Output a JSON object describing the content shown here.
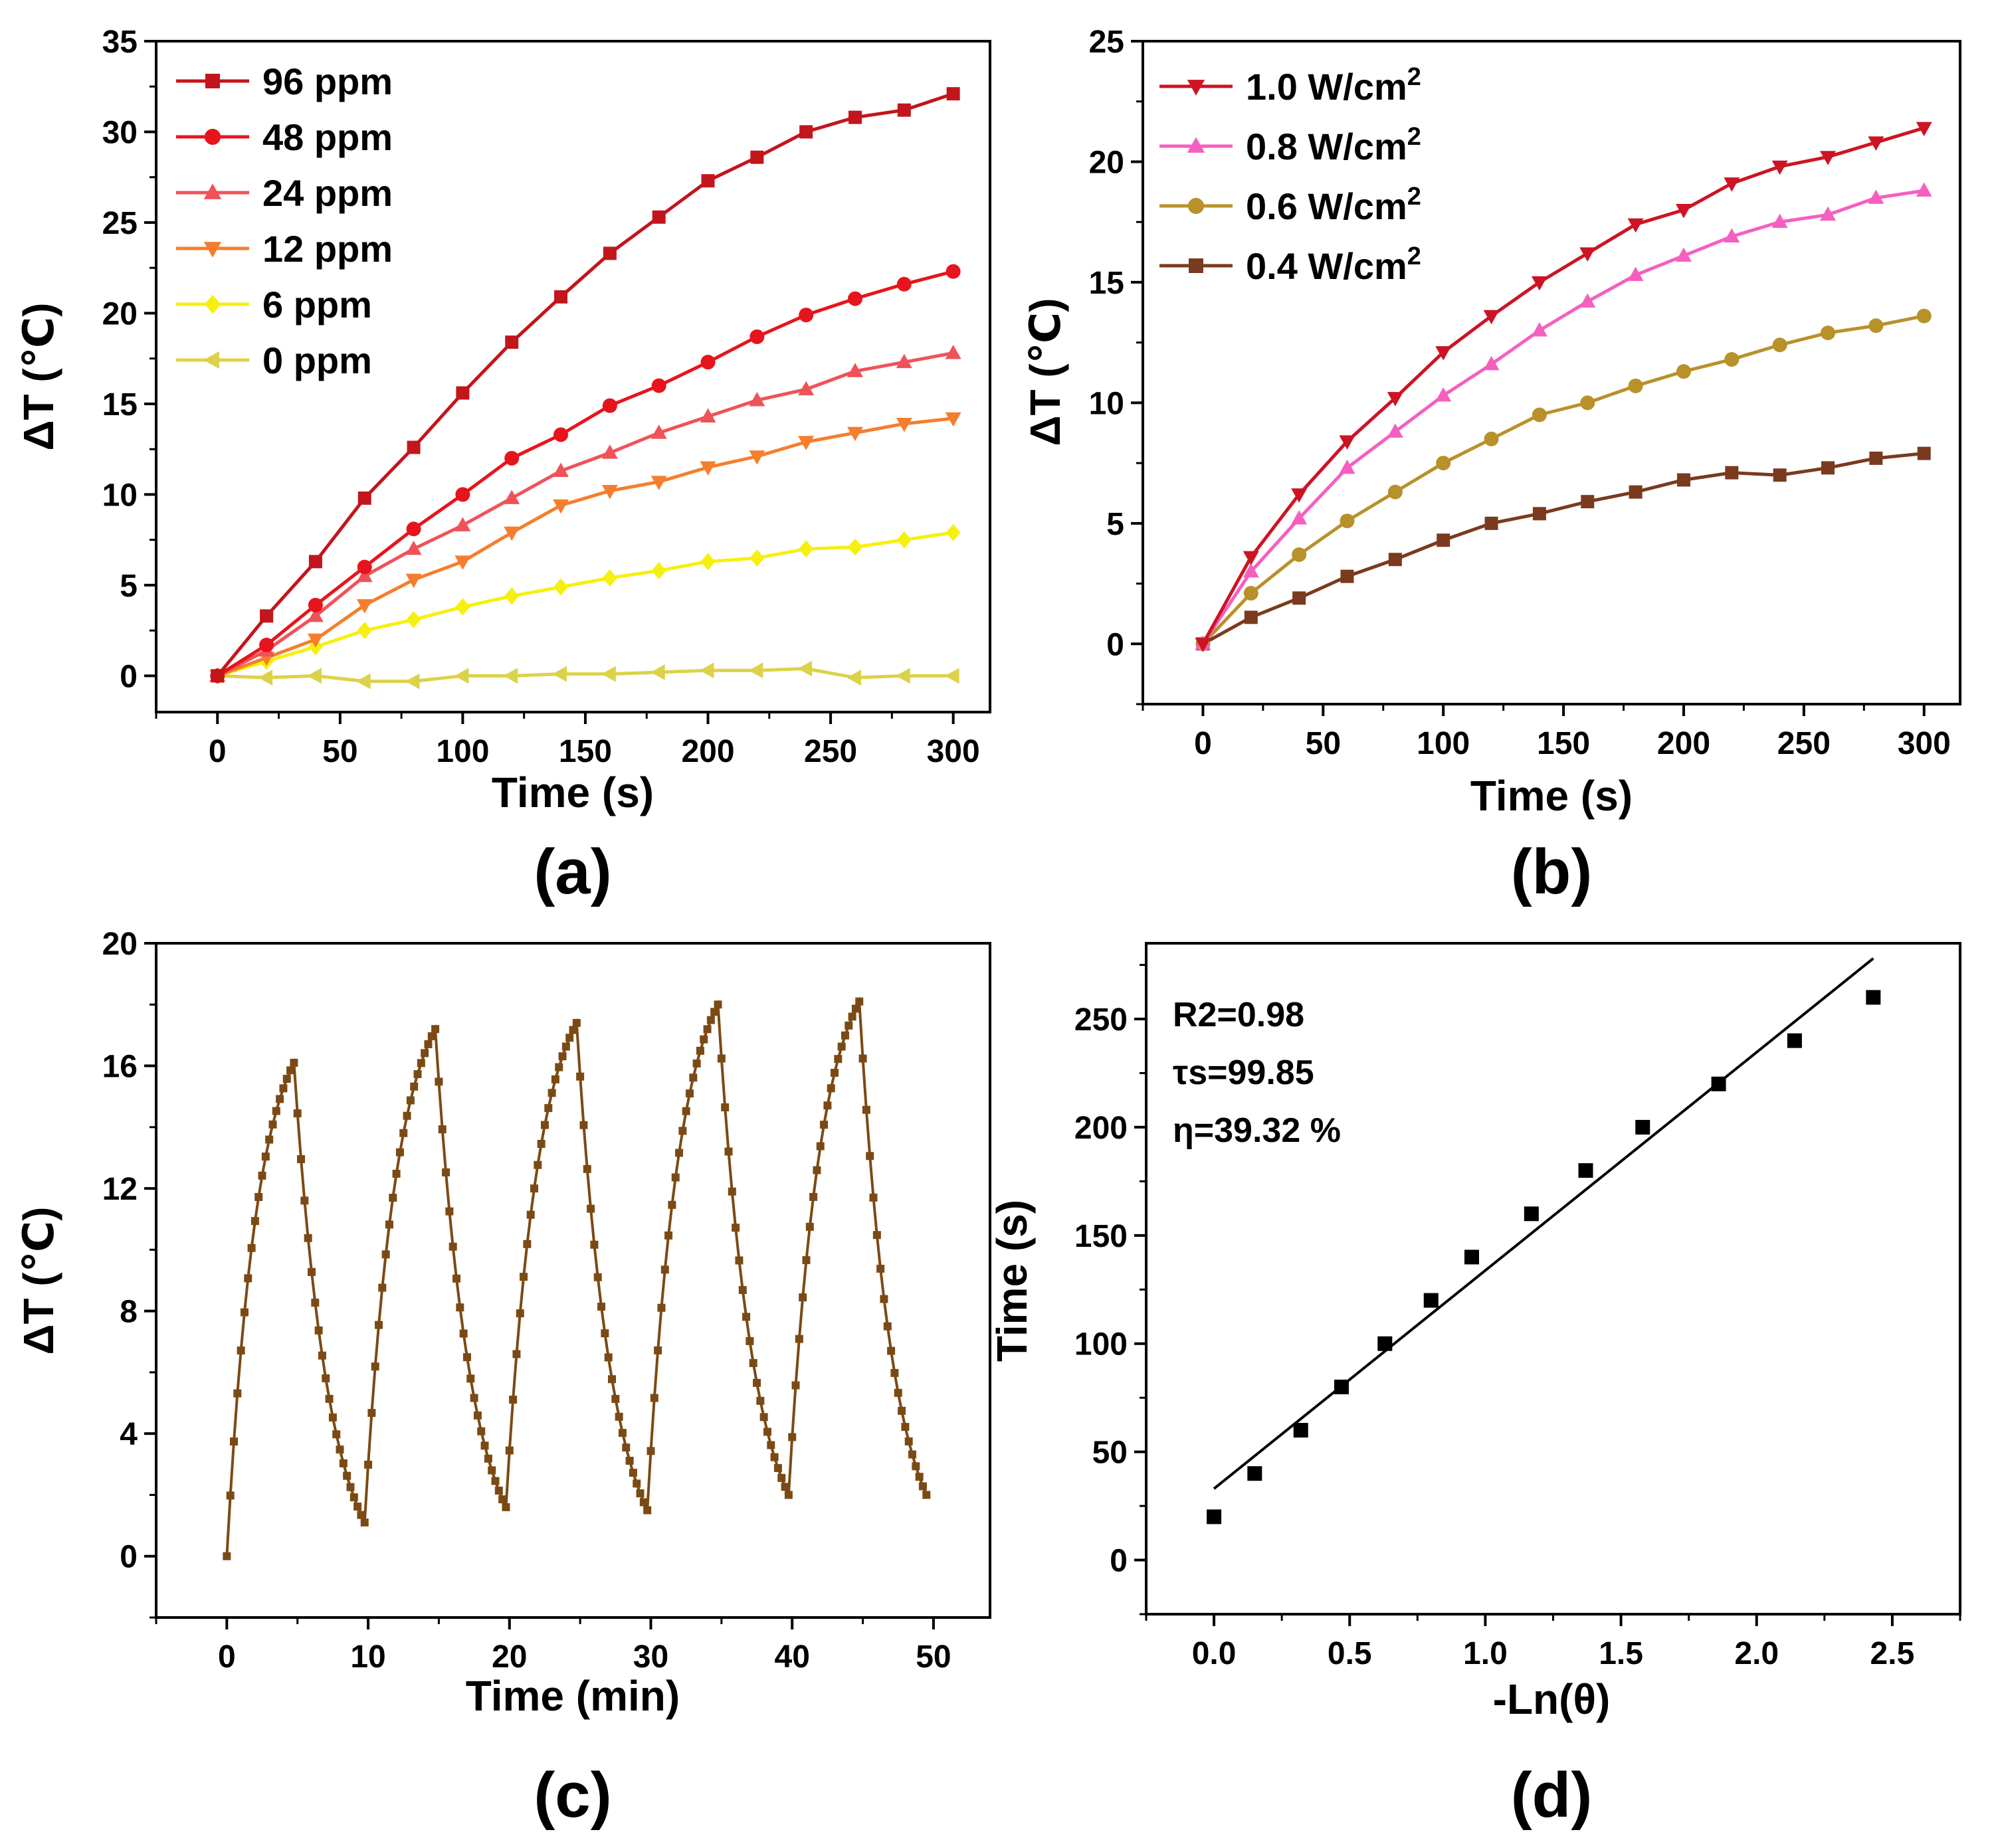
{
  "chart_data": [
    {
      "panel": "a",
      "type": "line",
      "panel_label": "(a)",
      "xlabel": "Time (s)",
      "ylabel": "ΔT (℃)",
      "xlim": [
        -25,
        315
      ],
      "ylim": [
        -2,
        35
      ],
      "xticks": [
        0,
        50,
        100,
        150,
        200,
        250,
        300
      ],
      "yticks": [
        0,
        5,
        10,
        15,
        20,
        25,
        30,
        35
      ],
      "legend_position": "top-left",
      "x": [
        0,
        20,
        40,
        60,
        80,
        100,
        120,
        140,
        160,
        180,
        200,
        220,
        240,
        260,
        280,
        300
      ],
      "series": [
        {
          "name": "96 ppm",
          "color": "#c3151c",
          "marker": "square",
          "values": [
            0,
            3.3,
            6.3,
            9.8,
            12.6,
            15.6,
            18.4,
            20.9,
            23.3,
            25.3,
            27.3,
            28.6,
            30.0,
            30.8,
            31.2,
            32.1
          ]
        },
        {
          "name": "48 ppm",
          "color": "#e8141c",
          "marker": "circle",
          "values": [
            0,
            1.7,
            3.9,
            6.0,
            8.1,
            10.0,
            12.0,
            13.3,
            14.9,
            16.0,
            17.3,
            18.7,
            19.9,
            20.8,
            21.6,
            22.3
          ]
        },
        {
          "name": "24 ppm",
          "color": "#f0525a",
          "marker": "triangle-up",
          "values": [
            0,
            1.4,
            3.3,
            5.5,
            7.0,
            8.3,
            9.8,
            11.3,
            12.3,
            13.4,
            14.3,
            15.2,
            15.8,
            16.8,
            17.3,
            17.8
          ]
        },
        {
          "name": "12 ppm",
          "color": "#f57e2e",
          "marker": "triangle-down",
          "values": [
            0,
            1.0,
            2.0,
            3.9,
            5.3,
            6.3,
            7.9,
            9.4,
            10.2,
            10.7,
            11.5,
            12.1,
            12.9,
            13.4,
            13.9,
            14.2
          ]
        },
        {
          "name": "6 ppm",
          "color": "#f6f00f",
          "marker": "diamond",
          "values": [
            0,
            0.8,
            1.6,
            2.5,
            3.1,
            3.8,
            4.4,
            4.9,
            5.4,
            5.8,
            6.3,
            6.5,
            7.0,
            7.1,
            7.5,
            7.9
          ]
        },
        {
          "name": "0 ppm",
          "color": "#dcd24a",
          "marker": "triangle-left",
          "values": [
            0,
            -0.1,
            0,
            -0.3,
            -0.3,
            0,
            0,
            0.1,
            0.1,
            0.2,
            0.3,
            0.3,
            0.4,
            -0.1,
            0,
            0
          ]
        }
      ]
    },
    {
      "panel": "b",
      "type": "line",
      "panel_label": "(b)",
      "xlabel": "Time (s)",
      "ylabel": "ΔT (℃)",
      "xlim": [
        -25,
        315
      ],
      "ylim": [
        -2.5,
        25
      ],
      "xticks": [
        0,
        50,
        100,
        150,
        200,
        250,
        300
      ],
      "yticks": [
        0,
        5,
        10,
        15,
        20,
        25
      ],
      "legend_position": "top-left",
      "x": [
        0,
        20,
        40,
        60,
        80,
        100,
        120,
        140,
        160,
        180,
        200,
        220,
        240,
        260,
        280,
        300
      ],
      "series": [
        {
          "name": "1.0 W/cm",
          "sup": "2",
          "color": "#cc1424",
          "marker": "triangle-down",
          "values": [
            0,
            3.6,
            6.2,
            8.4,
            10.2,
            12.1,
            13.6,
            15.0,
            16.2,
            17.4,
            18.0,
            19.1,
            19.8,
            20.2,
            20.8,
            21.4
          ]
        },
        {
          "name": "0.8 W/cm",
          "sup": "2",
          "color": "#f55fc0",
          "marker": "triangle-up",
          "values": [
            0,
            3.0,
            5.2,
            7.3,
            8.8,
            10.3,
            11.6,
            13.0,
            14.2,
            15.3,
            16.1,
            16.9,
            17.5,
            17.8,
            18.5,
            18.8
          ]
        },
        {
          "name": "0.6 W/cm",
          "sup": "2",
          "color": "#b8912a",
          "marker": "circle",
          "values": [
            0,
            2.1,
            3.7,
            5.1,
            6.3,
            7.5,
            8.5,
            9.5,
            10.0,
            10.7,
            11.3,
            11.8,
            12.4,
            12.9,
            13.2,
            13.6
          ]
        },
        {
          "name": "0.4 W/cm",
          "sup": "2",
          "color": "#7a3a1e",
          "marker": "square",
          "values": [
            0,
            1.1,
            1.9,
            2.8,
            3.5,
            4.3,
            5.0,
            5.4,
            5.9,
            6.3,
            6.8,
            7.1,
            7.0,
            7.3,
            7.7,
            7.9
          ]
        }
      ]
    },
    {
      "panel": "c",
      "type": "line",
      "panel_label": "(c)",
      "xlabel": "Time (min)",
      "ylabel": "ΔT (℃)",
      "xlim": [
        -5,
        54
      ],
      "ylim": [
        -2,
        20
      ],
      "xticks": [
        0,
        10,
        20,
        30,
        40,
        50
      ],
      "yticks": [
        0,
        4,
        8,
        12,
        16,
        20
      ],
      "color": "#7b4a14",
      "marker": "square",
      "cycles": [
        {
          "heat_start": 0,
          "start": 0,
          "peak_time": 4.75,
          "peak": 16.1,
          "end": 1.1
        },
        {
          "heat_start": 9.75,
          "start": 1.1,
          "peak_time": 14.75,
          "peak": 17.2,
          "end": 1.6
        },
        {
          "heat_start": 19.75,
          "start": 1.6,
          "peak_time": 24.75,
          "peak": 17.4,
          "end": 1.5
        },
        {
          "heat_start": 29.75,
          "start": 1.5,
          "peak_time": 34.75,
          "peak": 18.0,
          "end": 2.0
        },
        {
          "heat_start": 39.75,
          "start": 2.0,
          "peak_time": 44.75,
          "peak": 18.1,
          "end": 2.0
        }
      ],
      "cycle_end_time": 49.5,
      "sample_step_min": 0.25
    },
    {
      "panel": "d",
      "type": "scatter",
      "panel_label": "(d)",
      "xlabel": "-Ln(θ)",
      "ylabel": "Time (s)",
      "xlim": [
        -0.25,
        2.75
      ],
      "ylim": [
        -25,
        285
      ],
      "xticks": [
        0.0,
        0.5,
        1.0,
        1.5,
        2.0,
        2.5
      ],
      "xtick_labels": [
        "0.0",
        "0.5",
        "1.0",
        "1.5",
        "2.0",
        "2.5"
      ],
      "yticks": [
        0,
        50,
        100,
        150,
        200,
        250
      ],
      "points": {
        "x": [
          0.0,
          0.15,
          0.32,
          0.47,
          0.63,
          0.8,
          0.95,
          1.17,
          1.37,
          1.58,
          1.86,
          2.14,
          2.43
        ],
        "y": [
          20,
          40,
          60,
          80,
          100,
          120,
          140,
          160,
          180,
          200,
          220,
          240,
          260
        ]
      },
      "fit_line": {
        "x": [
          0.0,
          2.43
        ],
        "y": [
          33,
          278
        ]
      },
      "annotations": [
        "R2=0.98",
        "τs=99.85",
        "η=39.32 %"
      ]
    }
  ]
}
